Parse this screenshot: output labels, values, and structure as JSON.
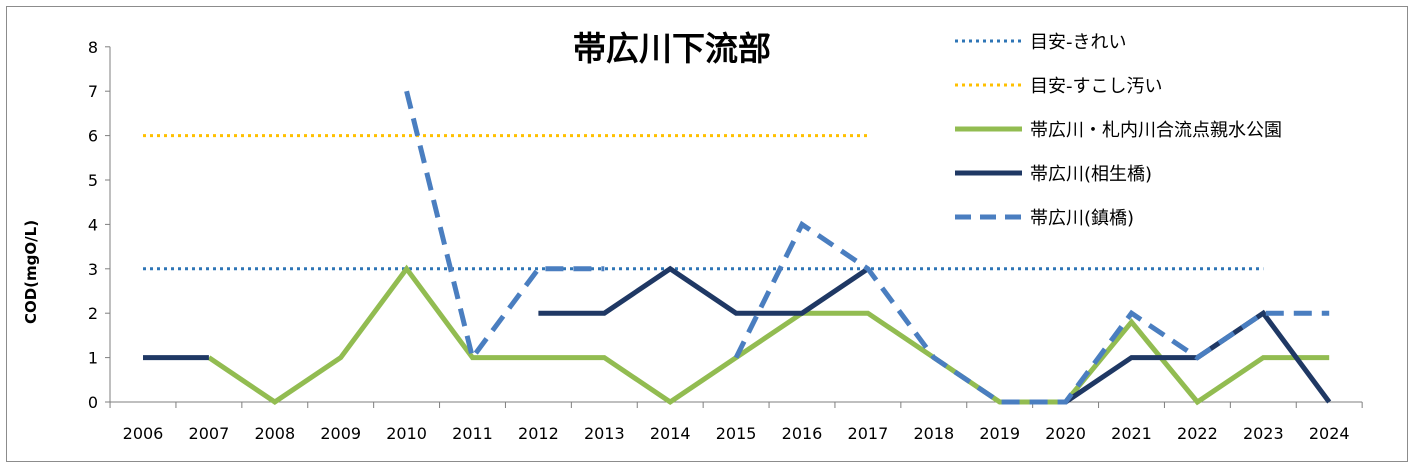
{
  "chart_data": {
    "type": "line",
    "title": "帯広川下流部",
    "ylabel": "COD(mgO/L)",
    "xlabel": "",
    "ylim": [
      0,
      8
    ],
    "yticks": [
      "0",
      "1",
      "2",
      "3",
      "4",
      "5",
      "6",
      "7",
      "8"
    ],
    "categories": [
      "2006",
      "2007",
      "2008",
      "2009",
      "2010",
      "2011",
      "2012",
      "2013",
      "2014",
      "2015",
      "2016",
      "2017",
      "2018",
      "2019",
      "2020",
      "2021",
      "2022",
      "2023",
      "2024"
    ],
    "legend_position": "top-right",
    "grid": false,
    "series": [
      {
        "name": "目安-きれい",
        "color": "#2E75B6",
        "style": "dotted",
        "values": [
          3,
          3,
          3,
          3,
          3,
          3,
          3,
          3,
          3,
          3,
          3,
          3,
          3,
          3,
          3,
          3,
          3,
          3,
          null
        ]
      },
      {
        "name": "目安-すこし汚い",
        "color": "#FFC000",
        "style": "dotted",
        "values": [
          6,
          6,
          6,
          6,
          6,
          6,
          6,
          6,
          6,
          6,
          6,
          6,
          null,
          null,
          null,
          null,
          null,
          null,
          null
        ]
      },
      {
        "name": "帯広川・札内川合流点親水公園",
        "color": "#92BC51",
        "style": "solid",
        "values": [
          null,
          1,
          0,
          1,
          3,
          1,
          1,
          1,
          0,
          1,
          2,
          2,
          1,
          0,
          0,
          1.8,
          0,
          1,
          1
        ]
      },
      {
        "name": "帯広川(相生橋)",
        "color": "#1F3864",
        "style": "solid",
        "values": [
          1,
          1,
          null,
          null,
          null,
          null,
          2,
          2,
          3,
          2,
          2,
          3,
          null,
          null,
          0,
          1,
          1,
          2,
          0
        ]
      },
      {
        "name": "帯広川(鎮橋)",
        "color": "#4A7EC0",
        "style": "dashed",
        "values": [
          null,
          null,
          null,
          null,
          7,
          1,
          3,
          3,
          null,
          1,
          4,
          3,
          1,
          0,
          0,
          2,
          1,
          2,
          2
        ]
      }
    ]
  }
}
